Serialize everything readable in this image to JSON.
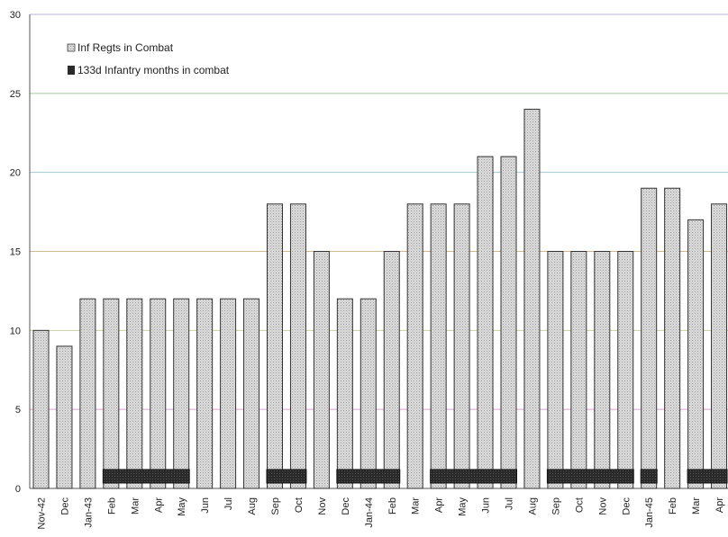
{
  "chart_data": {
    "type": "bar",
    "title": "",
    "xlabel": "",
    "ylabel": "",
    "ylim": [
      0,
      30
    ],
    "yticks": [
      0,
      5,
      10,
      15,
      20,
      25,
      30
    ],
    "grid": true,
    "legend_position": "top-left",
    "categories": [
      "Nov-42",
      "Dec",
      "Jan-43",
      "Feb",
      "Mar",
      "Apr",
      "May",
      "Jun",
      "Jul",
      "Aug",
      "Sep",
      "Oct",
      "Nov",
      "Dec",
      "Jan-44",
      "Feb",
      "Mar",
      "Apr",
      "May",
      "Jun",
      "Jul",
      "Aug",
      "Sep",
      "Oct",
      "Nov",
      "Dec",
      "Jan-45",
      "Feb",
      "Mar",
      "Apr"
    ],
    "series": [
      {
        "name": "Inf Regts in Combat",
        "color": "#d4d4d4",
        "values": [
          10,
          9,
          12,
          12,
          12,
          12,
          12,
          12,
          12,
          12,
          18,
          18,
          15,
          12,
          12,
          15,
          18,
          18,
          18,
          21,
          21,
          24,
          15,
          15,
          15,
          15,
          19,
          19,
          17,
          18
        ]
      },
      {
        "name": "133d Infantry months in combat",
        "color": "#2c2c2c",
        "values": [
          0,
          0,
          0,
          1,
          1,
          1,
          1,
          0,
          0,
          0,
          1,
          1,
          0,
          1,
          1,
          1,
          0,
          1,
          1,
          1,
          1,
          0,
          1,
          1,
          1,
          1,
          1,
          0,
          1,
          1
        ]
      }
    ],
    "combat_marker_height": 1
  }
}
